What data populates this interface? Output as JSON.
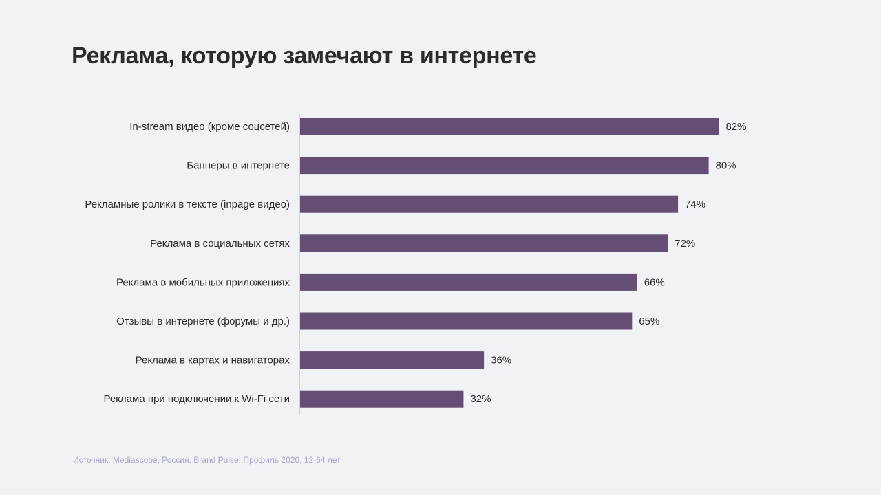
{
  "title": "Реклама, которую замечают в интернете",
  "source": "Источник: Mediascope, Россия, Brand Pulse, Профиль 2020, 12-64 лет",
  "colors": {
    "background": "#f1f2f6",
    "bar": "#644e73",
    "text": "#2b2b2b",
    "source_text": "#a4a9c6"
  },
  "chart_data": {
    "type": "bar",
    "orientation": "horizontal",
    "categories": [
      "In-stream видео (кроме соцсетей)",
      "Баннеры в интернете",
      "Рекламные ролики в тексте (inpage видео)",
      "Реклама в социальных сетях",
      "Реклама в мобильных приложениях",
      "Отзывы в интернете (форумы и др.)",
      "Реклама в картах и навигаторах",
      "Реклама при подключении к Wi-Fi сети"
    ],
    "values": [
      82,
      80,
      74,
      72,
      66,
      65,
      36,
      32
    ],
    "value_labels": [
      "82%",
      "80%",
      "74%",
      "72%",
      "66%",
      "65%",
      "36%",
      "32%"
    ],
    "xlim": [
      0,
      100
    ],
    "grid": false,
    "legend": "none"
  }
}
